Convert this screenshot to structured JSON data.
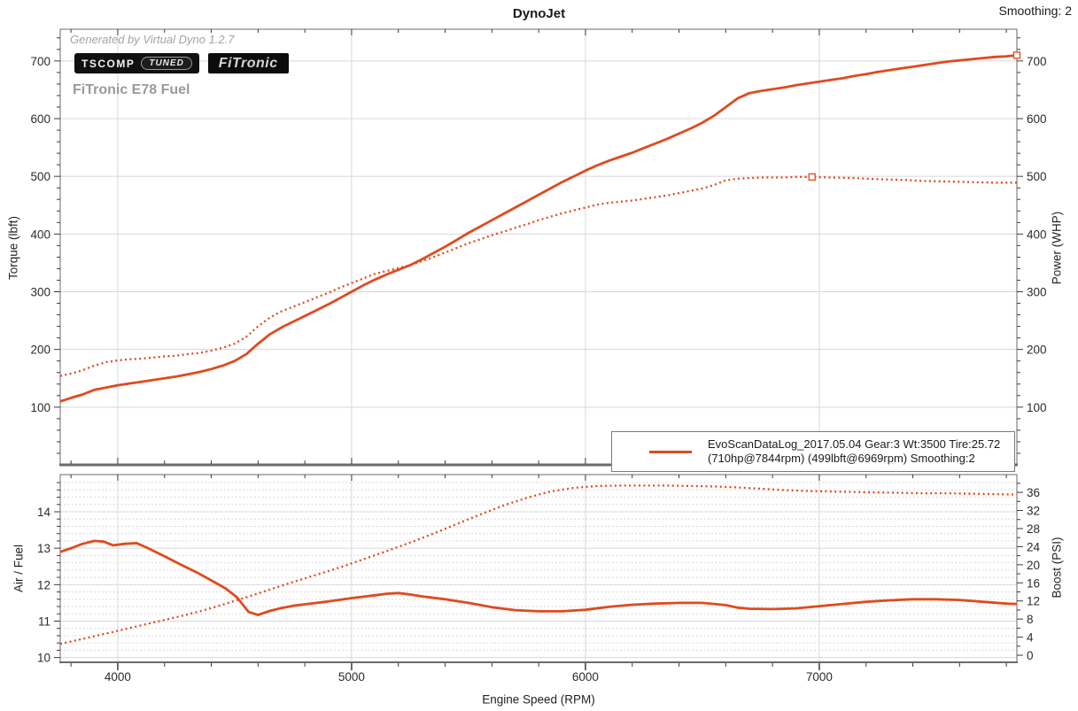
{
  "page": {
    "title": "DynoJet",
    "smoothing_label": "Smoothing: 2",
    "watermark": "Generated by Virtual Dyno 1.2.7",
    "run_name": "FiTronic E78 Fuel",
    "badge_tscomp": "TSCOMP",
    "badge_tuned": "TUNED",
    "badge_fitronic": "FiTronic"
  },
  "legend": {
    "line1": "EvoScanDataLog_2017.05.04 Gear:3 Wt:3500 Tire:25.72",
    "line2": "(710hp@7844rpm) (499lbft@6969rpm) Smoothing:2"
  },
  "colors": {
    "curve": "#e04a1e",
    "grid": "#d8d8d8",
    "grid_minor": "#cdcdcd",
    "axis": "#6b6b6b",
    "tick": "#3a3a3a",
    "tick_text": "#2b2b2b"
  },
  "chart_data": [
    {
      "type": "line",
      "title": "DynoJet",
      "xlabel": "Engine Speed (RPM)",
      "ylabel_left": "Torque (lbft)",
      "ylabel_right": "Power (WHP)",
      "x_range": [
        3754,
        7845
      ],
      "y_range": [
        0,
        755
      ],
      "x_ticks": [
        4000,
        5000,
        6000,
        7000
      ],
      "x_minor_step": 200,
      "y_ticks": [
        100,
        200,
        300,
        400,
        500,
        600,
        700
      ],
      "y_minor_step": 20,
      "peak_power": "710hp@7844rpm",
      "peak_torque": "499lbft@6969rpm",
      "series": [
        {
          "name": "Power (WHP)",
          "style": "solid",
          "points": [
            [
              3754,
              110
            ],
            [
              3800,
              116
            ],
            [
              3850,
              122
            ],
            [
              3900,
              130
            ],
            [
              3950,
              134
            ],
            [
              4000,
              138
            ],
            [
              4050,
              141
            ],
            [
              4100,
              144
            ],
            [
              4150,
              147
            ],
            [
              4200,
              150
            ],
            [
              4250,
              153
            ],
            [
              4300,
              157
            ],
            [
              4350,
              161
            ],
            [
              4400,
              166
            ],
            [
              4450,
              172
            ],
            [
              4500,
              180
            ],
            [
              4550,
              192
            ],
            [
              4600,
              210
            ],
            [
              4650,
              226
            ],
            [
              4700,
              238
            ],
            [
              4750,
              248
            ],
            [
              4800,
              258
            ],
            [
              4850,
              268
            ],
            [
              4900,
              278
            ],
            [
              4950,
              289
            ],
            [
              5000,
              300
            ],
            [
              5050,
              311
            ],
            [
              5100,
              321
            ],
            [
              5150,
              330
            ],
            [
              5200,
              338
            ],
            [
              5250,
              346
            ],
            [
              5300,
              356
            ],
            [
              5350,
              367
            ],
            [
              5400,
              378
            ],
            [
              5450,
              390
            ],
            [
              5500,
              402
            ],
            [
              5550,
              413
            ],
            [
              5600,
              424
            ],
            [
              5650,
              435
            ],
            [
              5700,
              446
            ],
            [
              5750,
              457
            ],
            [
              5800,
              468
            ],
            [
              5850,
              479
            ],
            [
              5900,
              490
            ],
            [
              5950,
              500
            ],
            [
              6000,
              510
            ],
            [
              6050,
              519
            ],
            [
              6100,
              527
            ],
            [
              6150,
              534
            ],
            [
              6200,
              541
            ],
            [
              6250,
              549
            ],
            [
              6300,
              557
            ],
            [
              6350,
              565
            ],
            [
              6400,
              574
            ],
            [
              6450,
              583
            ],
            [
              6500,
              593
            ],
            [
              6550,
              605
            ],
            [
              6600,
              620
            ],
            [
              6650,
              635
            ],
            [
              6700,
              644
            ],
            [
              6750,
              648
            ],
            [
              6800,
              651
            ],
            [
              6850,
              654
            ],
            [
              6900,
              658
            ],
            [
              6950,
              661
            ],
            [
              7000,
              664
            ],
            [
              7050,
              667
            ],
            [
              7100,
              670
            ],
            [
              7150,
              674
            ],
            [
              7200,
              677
            ],
            [
              7250,
              681
            ],
            [
              7300,
              684
            ],
            [
              7350,
              687
            ],
            [
              7400,
              690
            ],
            [
              7450,
              693
            ],
            [
              7500,
              696
            ],
            [
              7550,
              699
            ],
            [
              7600,
              701
            ],
            [
              7650,
              703
            ],
            [
              7700,
              705
            ],
            [
              7750,
              707
            ],
            [
              7800,
              708
            ],
            [
              7845,
              710
            ]
          ]
        },
        {
          "name": "Torque (lbft)",
          "style": "dotted",
          "points": [
            [
              3754,
              154
            ],
            [
              3800,
              158
            ],
            [
              3850,
              164
            ],
            [
              3900,
              172
            ],
            [
              3950,
              178
            ],
            [
              4000,
              181
            ],
            [
              4050,
              183
            ],
            [
              4100,
              184
            ],
            [
              4150,
              186
            ],
            [
              4200,
              188
            ],
            [
              4250,
              189
            ],
            [
              4300,
              192
            ],
            [
              4350,
              194
            ],
            [
              4400,
              198
            ],
            [
              4450,
              203
            ],
            [
              4500,
              210
            ],
            [
              4550,
              222
            ],
            [
              4600,
              240
            ],
            [
              4650,
              255
            ],
            [
              4700,
              266
            ],
            [
              4750,
              274
            ],
            [
              4800,
              282
            ],
            [
              4850,
              290
            ],
            [
              4900,
              298
            ],
            [
              4950,
              307
            ],
            [
              5000,
              315
            ],
            [
              5050,
              323
            ],
            [
              5100,
              331
            ],
            [
              5150,
              336
            ],
            [
              5200,
              341
            ],
            [
              5250,
              346
            ],
            [
              5300,
              353
            ],
            [
              5350,
              360
            ],
            [
              5400,
              368
            ],
            [
              5450,
              376
            ],
            [
              5500,
              384
            ],
            [
              5550,
              391
            ],
            [
              5600,
              398
            ],
            [
              5650,
              404
            ],
            [
              5700,
              411
            ],
            [
              5750,
              417
            ],
            [
              5800,
              424
            ],
            [
              5850,
              430
            ],
            [
              5900,
              436
            ],
            [
              5950,
              441
            ],
            [
              6000,
              446
            ],
            [
              6050,
              451
            ],
            [
              6100,
              454
            ],
            [
              6150,
              456
            ],
            [
              6200,
              458
            ],
            [
              6250,
              461
            ],
            [
              6300,
              464
            ],
            [
              6350,
              467
            ],
            [
              6400,
              471
            ],
            [
              6450,
              475
            ],
            [
              6500,
              479
            ],
            [
              6550,
              485
            ],
            [
              6600,
              493
            ],
            [
              6650,
              496
            ],
            [
              6700,
              497
            ],
            [
              6750,
              498
            ],
            [
              6800,
              498
            ],
            [
              6850,
              498
            ],
            [
              6900,
              499
            ],
            [
              6969,
              499
            ],
            [
              7050,
              498
            ],
            [
              7150,
              497
            ],
            [
              7250,
              495
            ],
            [
              7350,
              494
            ],
            [
              7450,
              492
            ],
            [
              7550,
              491
            ],
            [
              7650,
              490
            ],
            [
              7750,
              489
            ],
            [
              7845,
              489
            ]
          ]
        }
      ],
      "markers": [
        {
          "x": 6969,
          "y": 499
        },
        {
          "x": 7845,
          "y": 710
        }
      ]
    },
    {
      "type": "line",
      "ylabel_left": "Air / Fuel",
      "ylabel_right": "Boost (PSI)",
      "x_range": [
        3754,
        7845
      ],
      "y_left_range": [
        9.87,
        15.02
      ],
      "y_right_range": [
        -1.56,
        39.93
      ],
      "y_left_ticks": [
        10,
        11,
        12,
        13,
        14
      ],
      "y_left_minor_step": 0.2,
      "y_right_ticks": [
        0,
        4,
        8,
        12,
        16,
        20,
        24,
        28,
        32,
        36
      ],
      "y_right_minor_step": 2,
      "series": [
        {
          "name": "Air / Fuel",
          "style": "solid",
          "axis": "left",
          "points": [
            [
              3754,
              12.9
            ],
            [
              3800,
              13.0
            ],
            [
              3850,
              13.12
            ],
            [
              3900,
              13.2
            ],
            [
              3940,
              13.18
            ],
            [
              3980,
              13.08
            ],
            [
              4030,
              13.12
            ],
            [
              4080,
              13.14
            ],
            [
              4130,
              13.0
            ],
            [
              4200,
              12.78
            ],
            [
              4270,
              12.55
            ],
            [
              4340,
              12.33
            ],
            [
              4410,
              12.08
            ],
            [
              4460,
              11.9
            ],
            [
              4510,
              11.65
            ],
            [
              4560,
              11.25
            ],
            [
              4600,
              11.17
            ],
            [
              4650,
              11.28
            ],
            [
              4700,
              11.36
            ],
            [
              4750,
              11.42
            ],
            [
              4800,
              11.46
            ],
            [
              4900,
              11.54
            ],
            [
              5000,
              11.63
            ],
            [
              5100,
              11.71
            ],
            [
              5150,
              11.75
            ],
            [
              5200,
              11.77
            ],
            [
              5250,
              11.73
            ],
            [
              5300,
              11.68
            ],
            [
              5400,
              11.6
            ],
            [
              5500,
              11.5
            ],
            [
              5600,
              11.38
            ],
            [
              5700,
              11.3
            ],
            [
              5800,
              11.27
            ],
            [
              5900,
              11.27
            ],
            [
              6000,
              11.31
            ],
            [
              6100,
              11.39
            ],
            [
              6200,
              11.45
            ],
            [
              6300,
              11.48
            ],
            [
              6400,
              11.5
            ],
            [
              6500,
              11.5
            ],
            [
              6600,
              11.44
            ],
            [
              6650,
              11.37
            ],
            [
              6700,
              11.34
            ],
            [
              6800,
              11.33
            ],
            [
              6900,
              11.35
            ],
            [
              7000,
              11.41
            ],
            [
              7100,
              11.47
            ],
            [
              7200,
              11.53
            ],
            [
              7300,
              11.57
            ],
            [
              7400,
              11.6
            ],
            [
              7500,
              11.6
            ],
            [
              7600,
              11.58
            ],
            [
              7700,
              11.53
            ],
            [
              7800,
              11.48
            ],
            [
              7845,
              11.47
            ]
          ]
        },
        {
          "name": "Boost (PSI)",
          "style": "dotted",
          "axis": "right",
          "points": [
            [
              3754,
              2.5
            ],
            [
              3850,
              3.6
            ],
            [
              3950,
              4.8
            ],
            [
              4050,
              6.0
            ],
            [
              4150,
              7.2
            ],
            [
              4250,
              8.4
            ],
            [
              4350,
              9.7
            ],
            [
              4450,
              11.2
            ],
            [
              4550,
              12.8
            ],
            [
              4650,
              14.5
            ],
            [
              4750,
              16.2
            ],
            [
              4850,
              17.8
            ],
            [
              4950,
              19.4
            ],
            [
              5050,
              21.2
            ],
            [
              5150,
              23.0
            ],
            [
              5250,
              24.9
            ],
            [
              5350,
              26.9
            ],
            [
              5450,
              29.0
            ],
            [
              5550,
              31.1
            ],
            [
              5650,
              33.1
            ],
            [
              5750,
              34.8
            ],
            [
              5850,
              36.2
            ],
            [
              5950,
              37.0
            ],
            [
              6050,
              37.4
            ],
            [
              6150,
              37.5
            ],
            [
              6250,
              37.5
            ],
            [
              6350,
              37.5
            ],
            [
              6450,
              37.4
            ],
            [
              6550,
              37.3
            ],
            [
              6650,
              37.1
            ],
            [
              6750,
              36.8
            ],
            [
              6850,
              36.5
            ],
            [
              6950,
              36.3
            ],
            [
              7050,
              36.2
            ],
            [
              7150,
              36.1
            ],
            [
              7250,
              36.0
            ],
            [
              7350,
              35.9
            ],
            [
              7450,
              35.8
            ],
            [
              7550,
              35.8
            ],
            [
              7650,
              35.7
            ],
            [
              7750,
              35.6
            ],
            [
              7845,
              35.5
            ]
          ]
        }
      ]
    }
  ]
}
